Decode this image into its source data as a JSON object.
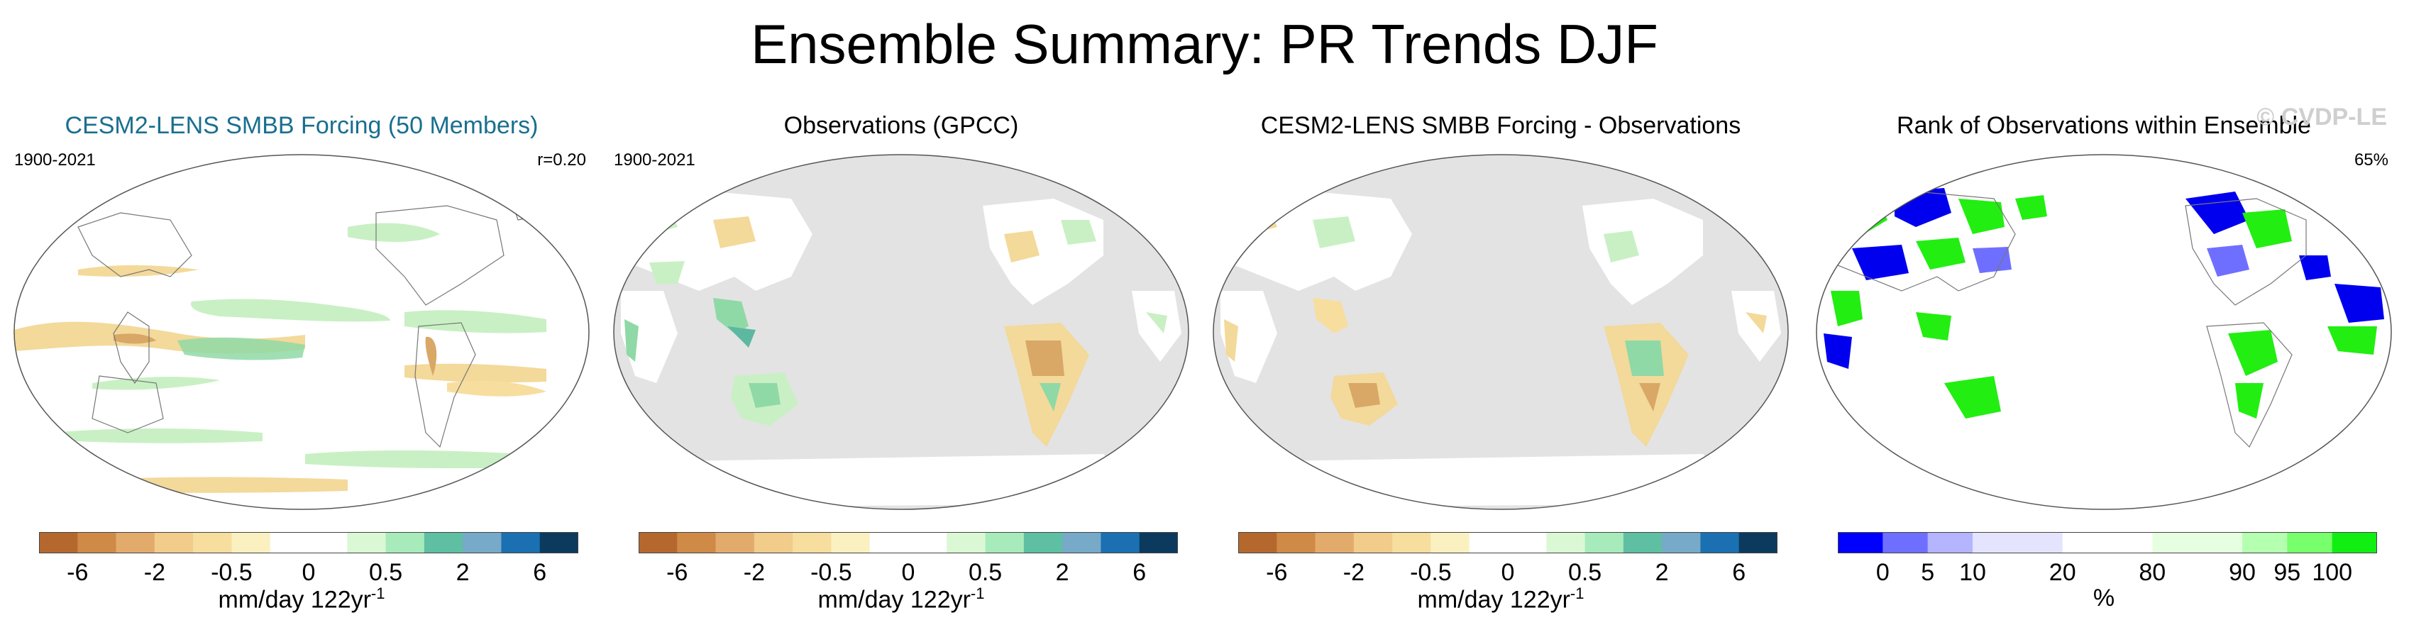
{
  "figure_title": "Ensemble Summary: PR Trends DJF",
  "watermark": "© CVDP-LE",
  "colors": {
    "ocean_gray": "#e3e3e3",
    "title_blue": "#1a6f8f",
    "brown": "#d9a766",
    "tan": "#f3d99a",
    "pale_green": "#c9f0c4",
    "green": "#8fd9a6",
    "teal": "#5db8a1",
    "rank_blue": "#0000ee",
    "rank_green": "#22ee11"
  },
  "panels": [
    {
      "title": "CESM2-LENS SMBB Forcing (50 Members)",
      "period": "1900-2021",
      "corner": "r=0.20"
    },
    {
      "title": "Observations (GPCC)",
      "period": "1900-2021",
      "corner": ""
    },
    {
      "title": "CESM2-LENS SMBB Forcing - Observations",
      "period": "",
      "corner": ""
    },
    {
      "title": "Rank of Observations within Ensemble",
      "period": "",
      "corner": "65%"
    }
  ],
  "colorbars": {
    "trend": {
      "colors": [
        "#b5682d",
        "#cf8a48",
        "#e2ab6c",
        "#f1cc8a",
        "#f7de9f",
        "#fbf1c0",
        "#ffffff",
        "#ffffff",
        "#dbf8d4",
        "#a7ebbb",
        "#5fbfa3",
        "#77a9c8",
        "#1a70b0",
        "#0b3a5e"
      ],
      "ticks": [
        "-6",
        "-2",
        "-0.5",
        "0",
        "0.5",
        "2",
        "6"
      ],
      "tick_bounds": [
        1,
        3,
        5,
        7,
        9,
        11,
        13
      ],
      "label": "mm/day 122yr",
      "label_exponent": "-1"
    },
    "rank": {
      "colors": [
        "#0000ff",
        "#6f6fff",
        "#b4b4ff",
        "#e4e4ff",
        "#e4e4ff",
        "#ffffff",
        "#ffffff",
        "#e6ffe0",
        "#e6ffe0",
        "#b4ffb0",
        "#78ff6c",
        "#11ee11"
      ],
      "ticks": [
        "0",
        "5",
        "10",
        "20",
        "80",
        "90",
        "95",
        "100"
      ],
      "tick_bounds": [
        1,
        2,
        3,
        5,
        7,
        9,
        10,
        11
      ],
      "label": "%"
    }
  },
  "chart_data": [
    {
      "type": "heatmap",
      "title": "CESM2-LENS SMBB Forcing (50 Members)",
      "period": "1900-2021",
      "statistic": "r=0.20",
      "units": "mm/day 122yr-1",
      "scale": [
        -6,
        -2,
        -0.5,
        0,
        0.5,
        2,
        6
      ],
      "extent": "global land+ocean"
    },
    {
      "type": "heatmap",
      "title": "Observations (GPCC)",
      "period": "1900-2021",
      "units": "mm/day 122yr-1",
      "scale": [
        -6,
        -2,
        -0.5,
        0,
        0.5,
        2,
        6
      ],
      "extent": "land only"
    },
    {
      "type": "heatmap",
      "title": "CESM2-LENS SMBB Forcing - Observations",
      "units": "mm/day 122yr-1",
      "scale": [
        -6,
        -2,
        -0.5,
        0,
        0.5,
        2,
        6
      ],
      "extent": "land only"
    },
    {
      "type": "heatmap",
      "title": "Rank of Observations within Ensemble",
      "statistic": "65%",
      "units": "%",
      "scale": [
        0,
        5,
        10,
        20,
        80,
        90,
        95,
        100
      ],
      "extent": "land only"
    }
  ]
}
